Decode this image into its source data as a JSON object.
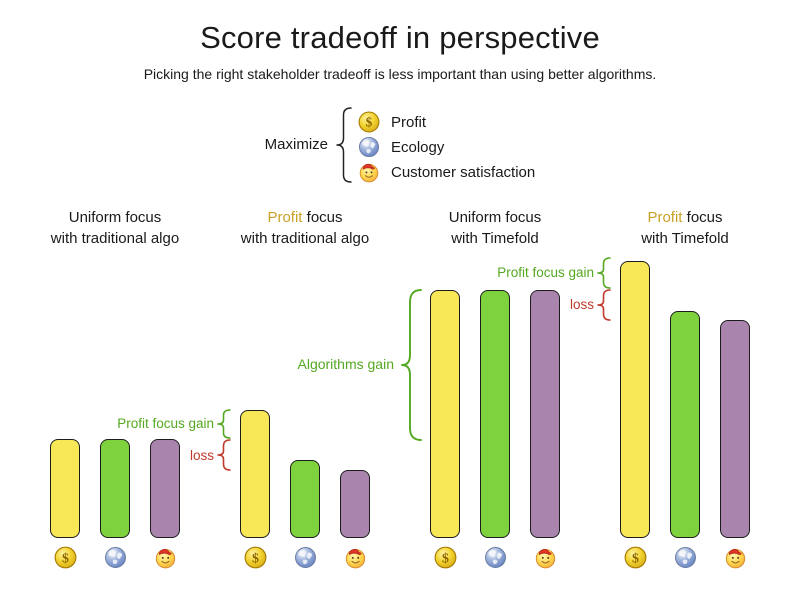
{
  "title": "Score tradeoff in perspective",
  "subtitle": "Picking the right stakeholder tradeoff is less important than using better algorithms.",
  "legend": {
    "label": "Maximize",
    "items": [
      {
        "icon": "coin-icon",
        "label": "Profit"
      },
      {
        "icon": "globe-icon",
        "label": "Ecology"
      },
      {
        "icon": "smiley-icon",
        "label": "Customer satisfaction"
      }
    ]
  },
  "annotations": {
    "traditional_gain": "Profit focus gain",
    "traditional_loss": "loss",
    "algorithms_gain": "Algorithms gain",
    "timefold_gain": "Profit focus gain",
    "timefold_loss": "loss"
  },
  "colors": {
    "profit_bar": "#F8E756",
    "ecology_bar": "#7ED23E",
    "customer_bar": "#A985AE",
    "gain_text": "#55A821",
    "loss_text": "#C0392B",
    "profit_word": "#C9A227"
  },
  "chart_data": {
    "type": "bar",
    "title": "Score tradeoff in perspective",
    "subtitle": "Picking the right stakeholder tradeoff is less important than using better algorithms.",
    "series": [
      "Profit",
      "Ecology",
      "Customer satisfaction"
    ],
    "series_icons": [
      "coin",
      "globe",
      "smiley"
    ],
    "groups": [
      {
        "label_line1": "Uniform focus",
        "label_line2": "with traditional algo",
        "highlight_profit": false,
        "values": [
          99,
          99,
          99
        ]
      },
      {
        "label_line1": "Profit focus",
        "label_line2": "with traditional algo",
        "highlight_profit": true,
        "values": [
          128,
          78,
          68
        ]
      },
      {
        "label_line1": "Uniform focus",
        "label_line2": "with Timefold",
        "highlight_profit": false,
        "values": [
          248,
          248,
          248
        ]
      },
      {
        "label_line1": "Profit focus",
        "label_line2": "with Timefold",
        "highlight_profit": true,
        "values": [
          277,
          227,
          218
        ]
      }
    ],
    "value_units": "relative score (bar height, px)",
    "axes": "none",
    "grid": false,
    "legend_position": "top-center"
  }
}
